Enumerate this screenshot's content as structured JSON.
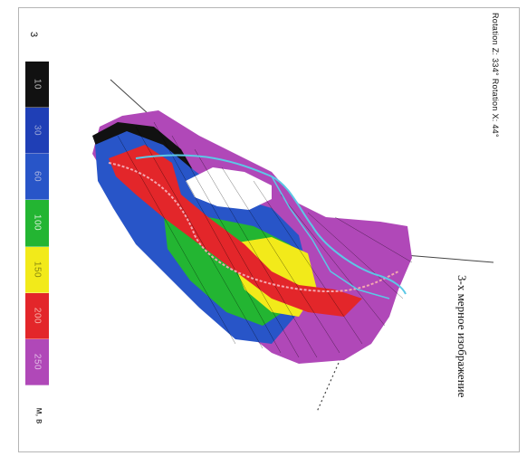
{
  "rotation_text": "Rotation Z: 334° Rotation X: 44°",
  "scale_header": "3",
  "legend": [
    {
      "label": "10",
      "color": "#111111",
      "text_color": "#bbbbbb"
    },
    {
      "label": "30",
      "color": "#1f3fb6",
      "text_color": "#9aa6d8"
    },
    {
      "label": "60",
      "color": "#2855c8",
      "text_color": "#aab4e0"
    },
    {
      "label": "100",
      "color": "#23b532",
      "text_color": "#d4f0d4"
    },
    {
      "label": "150",
      "color": "#f2ea1a",
      "text_color": "#8a8a10"
    },
    {
      "label": "200",
      "color": "#e3262a",
      "text_color": "#f5b0a8"
    },
    {
      "label": "250",
      "color": "#b048b8",
      "text_color": "#e2bde6"
    }
  ],
  "units_text": "м, в",
  "caption": "3-х мерное изображение",
  "colors": {
    "purple": "#b048b8",
    "blue": "#2855c8",
    "green": "#23b532",
    "yellow": "#f2ea1a",
    "red": "#e3262a",
    "black": "#111111",
    "cyan": "#5cc8e6"
  }
}
